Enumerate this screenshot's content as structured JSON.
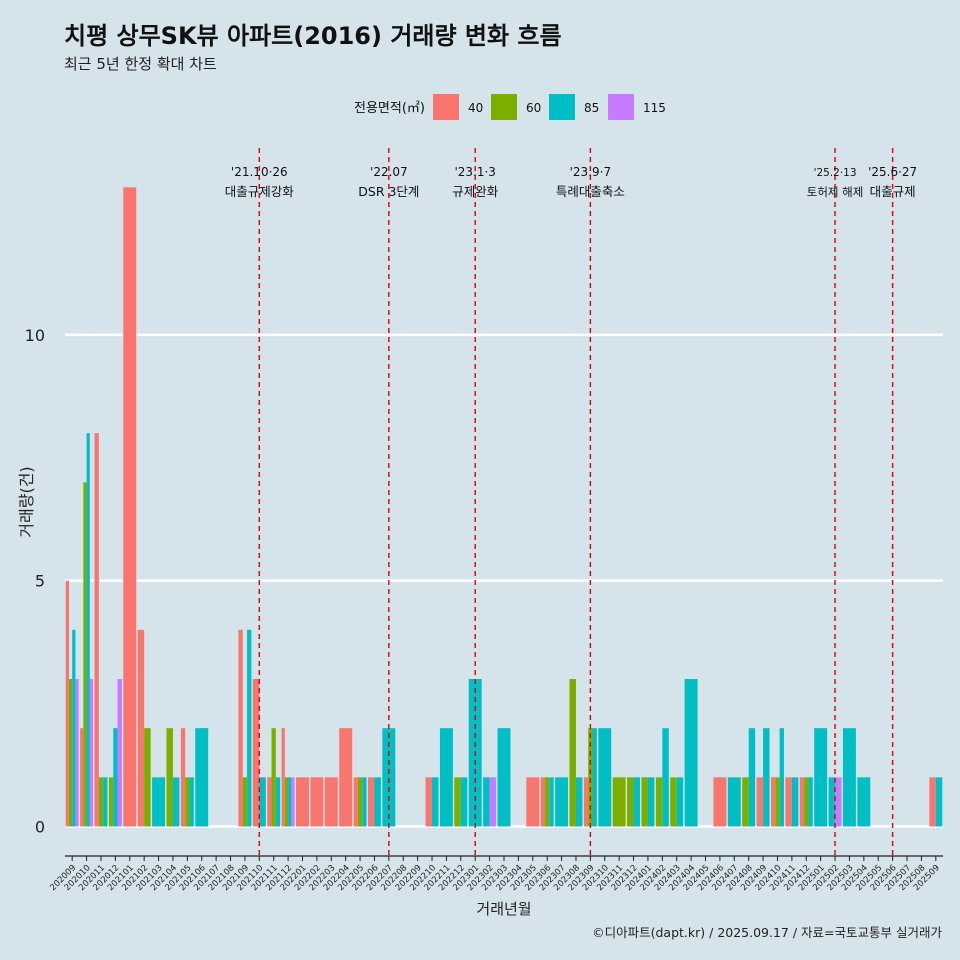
{
  "chart_data": {
    "type": "bar",
    "title": "치평 상무SK뷰 아파트(2016) 거래량 변화 흐름",
    "subtitle": "최근 5년 한정 확대 차트",
    "xlabel": "거래년월",
    "ylabel": "거래량(건)",
    "legend_title": "전용면적(㎡)",
    "legend_position": "top",
    "y_ticks": [
      0,
      5,
      10
    ],
    "ylim": [
      -0.6,
      13.8
    ],
    "grid": "horizontal",
    "caption": "©디아파트(dapt.kr) / 2025.09.17 / 자료=국토교통부 실거래가",
    "categories": [
      "202009",
      "202010",
      "202011",
      "202012",
      "202101",
      "202102",
      "202103",
      "202104",
      "202105",
      "202106",
      "202107",
      "202108",
      "202109",
      "202110",
      "202111",
      "202112",
      "202201",
      "202202",
      "202203",
      "202204",
      "202205",
      "202206",
      "202207",
      "202208",
      "202209",
      "202210",
      "202211",
      "202212",
      "202301",
      "202302",
      "202303",
      "202304",
      "202305",
      "202306",
      "202307",
      "202308",
      "202309",
      "202310",
      "202311",
      "202312",
      "202401",
      "202402",
      "202403",
      "202404",
      "202405",
      "202406",
      "202407",
      "202408",
      "202409",
      "202410",
      "202411",
      "202412",
      "202501",
      "202502",
      "202503",
      "202504",
      "202505",
      "202506",
      "202507",
      "202508",
      "202509"
    ],
    "series": [
      {
        "name": "40",
        "color": "#f8766d",
        "values": [
          5,
          2,
          8,
          0,
          13,
          4,
          0,
          0,
          2,
          0,
          0,
          0,
          4,
          3,
          1,
          2,
          1,
          1,
          1,
          2,
          1,
          1,
          0,
          0,
          0,
          1,
          0,
          0,
          0,
          0,
          0,
          0,
          1,
          1,
          0,
          0,
          1,
          0,
          0,
          0,
          0,
          0,
          0,
          0,
          0,
          1,
          0,
          0,
          1,
          1,
          1,
          1,
          0,
          0,
          0,
          0,
          0,
          0,
          0,
          0,
          1
        ]
      },
      {
        "name": "60",
        "color": "#7cae00",
        "values": [
          3,
          7,
          1,
          1,
          0,
          2,
          0,
          2,
          1,
          0,
          0,
          0,
          1,
          0,
          2,
          1,
          0,
          0,
          0,
          0,
          1,
          0,
          0,
          0,
          0,
          0,
          0,
          1,
          0,
          0,
          0,
          0,
          0,
          1,
          0,
          3,
          2,
          0,
          1,
          1,
          1,
          1,
          1,
          0,
          0,
          0,
          0,
          1,
          0,
          1,
          0,
          1,
          0,
          0,
          0,
          0,
          0,
          0,
          0,
          0,
          0
        ]
      },
      {
        "name": "85",
        "color": "#00bfc4",
        "values": [
          4,
          8,
          1,
          2,
          0,
          0,
          1,
          1,
          1,
          2,
          0,
          0,
          4,
          1,
          1,
          1,
          0,
          0,
          0,
          0,
          1,
          1,
          2,
          0,
          0,
          1,
          2,
          1,
          3,
          1,
          2,
          0,
          0,
          1,
          1,
          1,
          2,
          2,
          0,
          1,
          1,
          2,
          1,
          3,
          0,
          0,
          1,
          2,
          2,
          2,
          1,
          1,
          2,
          1,
          2,
          1,
          0,
          0,
          0,
          0,
          1
        ]
      },
      {
        "name": "115",
        "color": "#c77cff",
        "values": [
          3,
          3,
          0,
          3,
          0,
          0,
          0,
          0,
          0,
          0,
          0,
          0,
          0,
          0,
          0,
          1,
          0,
          0,
          0,
          0,
          0,
          0,
          0,
          0,
          0,
          0,
          0,
          0,
          0,
          1,
          0,
          0,
          0,
          0,
          0,
          0,
          0,
          0,
          0,
          0,
          0,
          0,
          0,
          0,
          0,
          0,
          0,
          0,
          0,
          0,
          0,
          0,
          0,
          1,
          0,
          0,
          0,
          0,
          0,
          0,
          0
        ]
      }
    ],
    "events": [
      {
        "x": "202110",
        "date": "'21.10·26",
        "label": "대출규제강화"
      },
      {
        "x": "202207",
        "date": "'22.07",
        "label": "DSR 3단계"
      },
      {
        "x": "202301",
        "date": "'23.1·3",
        "label": "규제완화"
      },
      {
        "x": "202309",
        "date": "'23.9·7",
        "label": "특례대출축소"
      },
      {
        "x": "202502",
        "date": "'25.2·13",
        "label": "토허제 해제"
      },
      {
        "x": "202506",
        "date": "'25.6·27",
        "label": "대출규제"
      }
    ]
  }
}
